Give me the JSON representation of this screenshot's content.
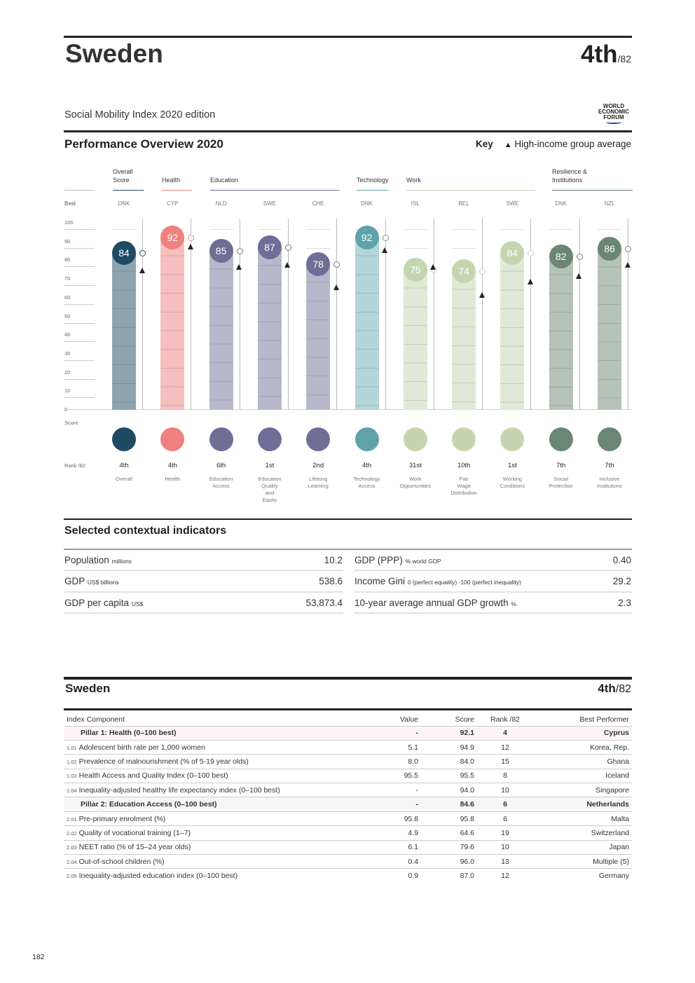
{
  "header": {
    "country": "Sweden",
    "rank": "4th",
    "rank_of": "/82",
    "edition": "Social Mobility Index 2020 edition",
    "logo_text": "WORLD ECONOMIC FORUM"
  },
  "overview": {
    "title": "Performance Overview 2020",
    "key_label": "Key",
    "key_text": "High-income group average",
    "best_label": "Best",
    "score_label": "Score",
    "rank_label": "Rank /82",
    "groups": [
      {
        "name": "Overall\nScore",
        "color": "#1f4a63"
      },
      {
        "name": "Health",
        "color": "#f08080"
      },
      {
        "name": "Education",
        "color": "#6e6e96"
      },
      {
        "name": "Technology",
        "color": "#5fa3a8"
      },
      {
        "name": "Work",
        "color": "#c8d6b8"
      },
      {
        "name": "Resilience &\nInstitutions",
        "color": "#6b8672"
      }
    ],
    "y_ticks": [
      "100",
      "90",
      "80",
      "70",
      "60",
      "50",
      "40",
      "30",
      "20",
      "10",
      "0"
    ]
  },
  "chart_data": {
    "type": "bar",
    "title": "Performance Overview 2020",
    "ylim": [
      0,
      100
    ],
    "ylabel": "Score",
    "categories": [
      "Overall",
      "Health",
      "Education Access",
      "Education Quality and Equity",
      "Lifelong Learning",
      "Technology Access",
      "Work Opportunities",
      "Fair Wage Distribution",
      "Working Conditions",
      "Social Protection",
      "Inclusive Institutions"
    ],
    "pillars": [
      {
        "label": "Overall",
        "best": "DNK",
        "score": 84,
        "avg": 74,
        "rank": "4th",
        "dark": "#1f4a63",
        "light": "#8ea3b0"
      },
      {
        "label": "Health",
        "best": "CYP",
        "score": 92,
        "avg": 87,
        "rank": "4th",
        "dark": "#f08080",
        "light": "#f5bfc0"
      },
      {
        "label": "Education\nAccess",
        "best": "NLD",
        "score": 85,
        "avg": 76,
        "rank": "6th",
        "dark": "#6e6e96",
        "light": "#b8b8cc"
      },
      {
        "label": "Education\nQuality\nand\nEquity",
        "best": "SWE",
        "score": 87,
        "avg": 77,
        "rank": "1st",
        "dark": "#6e6e96",
        "light": "#b8b8cc"
      },
      {
        "label": "Lifelong\nLearning",
        "best": "CHE",
        "score": 78,
        "avg": 65,
        "rank": "2nd",
        "dark": "#6e6e96",
        "light": "#b8b8cc"
      },
      {
        "label": "Technology\nAccess",
        "best": "DNK",
        "score": 92,
        "avg": 85,
        "rank": "4th",
        "dark": "#5fa3a8",
        "light": "#b3d6d8"
      },
      {
        "label": "Work\nOpportunities",
        "best": "ISL",
        "score": 75,
        "avg": 76,
        "rank": "31st",
        "dark": "#c4d6b0",
        "light": "#e0e9d6"
      },
      {
        "label": "Fair\nWage\nDistribution",
        "best": "BEL",
        "score": 74,
        "avg": 61,
        "rank": "10th",
        "dark": "#c4d6b0",
        "light": "#e0e9d6"
      },
      {
        "label": "Working\nConditions",
        "best": "SWE",
        "score": 84,
        "avg": 68,
        "rank": "1st",
        "dark": "#c4d6b0",
        "light": "#e0e9d6"
      },
      {
        "label": "Social\nProtection",
        "best": "DNK",
        "score": 82,
        "avg": 71,
        "rank": "7th",
        "dark": "#6b8672",
        "light": "#b5c2b8"
      },
      {
        "label": "Inclusive\nInstitutions",
        "best": "NZL",
        "score": 86,
        "avg": 77,
        "rank": "7th",
        "dark": "#6b8672",
        "light": "#b5c2b8"
      }
    ]
  },
  "context": {
    "title": "Selected contextual indicators",
    "left": [
      {
        "label": "Population",
        "unit": "millions",
        "value": "10.2"
      },
      {
        "label": "GDP",
        "unit": "US$ billions",
        "value": "538.6"
      },
      {
        "label": "GDP per capita",
        "unit": "US$",
        "value": "53,873.4"
      }
    ],
    "right": [
      {
        "label": "GDP (PPP)",
        "unit": "% world GDP",
        "value": "0.40"
      },
      {
        "label": "Income Gini",
        "unit": "0 (perfect equality) -100 (perfect inequality)",
        "value": "29.2"
      },
      {
        "label": "10-year average annual GDP growth",
        "unit": "%",
        "value": "2.3"
      }
    ]
  },
  "detail": {
    "country": "Sweden",
    "rank": "4th",
    "rank_of": "/82",
    "columns": [
      "Index Component",
      "Value",
      "Score",
      "Rank /82",
      "Best Performer"
    ],
    "rows": [
      {
        "type": "pillar",
        "code": "",
        "name": "Pillar 1: Health (0–100 best)",
        "value": "-",
        "score": "92.1",
        "rank": "4",
        "best": "Cyprus"
      },
      {
        "type": "item",
        "code": "1.01",
        "name": "Adolescent birth rate per 1,000 women",
        "value": "5.1",
        "score": "94.9",
        "rank": "12",
        "best": "Korea, Rep."
      },
      {
        "type": "item",
        "code": "1.02",
        "name": "Prevalence of malnourishment (% of 5-19 year olds)",
        "value": "8.0",
        "score": "84.0",
        "rank": "15",
        "best": "Ghana"
      },
      {
        "type": "item",
        "code": "1.03",
        "name": "Health Access and Quality Index (0–100 best)",
        "value": "95.5",
        "score": "95.5",
        "rank": "8",
        "best": "Iceland"
      },
      {
        "type": "item",
        "code": "1.04",
        "name": "Inequality-adjusted healthy life expectancy index (0–100 best)",
        "value": "-",
        "score": "94.0",
        "rank": "10",
        "best": "Singapore"
      },
      {
        "type": "pillar2",
        "code": "",
        "name": "Pillar 2: Education Access (0–100 best)",
        "value": "-",
        "score": "84.6",
        "rank": "6",
        "best": "Netherlands"
      },
      {
        "type": "item",
        "code": "2.01",
        "name": "Pre-primary enrolment (%)",
        "value": "95.8",
        "score": "95.8",
        "rank": "6",
        "best": "Malta"
      },
      {
        "type": "item",
        "code": "2.02",
        "name": "Quality of vocational training (1–7)",
        "value": "4.9",
        "score": "64.6",
        "rank": "19",
        "best": "Switzerland"
      },
      {
        "type": "item",
        "code": "2.03",
        "name": "NEET ratio (% of 15–24 year olds)",
        "value": "6.1",
        "score": "79.6",
        "rank": "10",
        "best": "Japan"
      },
      {
        "type": "item",
        "code": "2.04",
        "name": "Out-of-school children (%)",
        "value": "0.4",
        "score": "96.0",
        "rank": "13",
        "best": "Multiple (5)"
      },
      {
        "type": "item",
        "code": "2.05",
        "name": "Inequality-adjusted education index (0–100 best)",
        "value": "0.9",
        "score": "87.0",
        "rank": "12",
        "best": "Germany"
      }
    ]
  },
  "page_number": "182"
}
